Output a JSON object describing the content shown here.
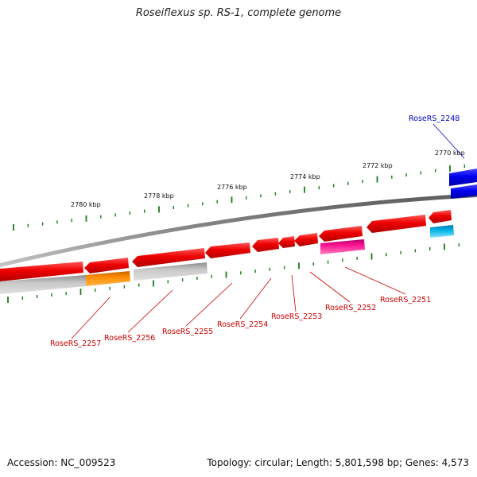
{
  "title": "Roseiflexus sp. RS-1, complete genome",
  "footer": {
    "accession": "Accession: NC_009523",
    "summary": "Topology: circular; Length: 5,801,598 bp; Genes: 4,573"
  },
  "colors": {
    "backbone": "#808080",
    "tick": "#1a7a1a",
    "gene_red": "#ee0000",
    "gene_blue": "#0000ee",
    "gene_gray": "#b4b4b4",
    "gene_orange": "#ff8c00",
    "gene_pink": "#ff1493",
    "gene_cyan": "#00b4e6",
    "label_red": "#cc0000",
    "label_blue": "#0000cc"
  },
  "axis": {
    "unit": "kbp",
    "tick_labels": [
      "2770 kbp",
      "2772 kbp",
      "2774 kbp",
      "2776 kbp",
      "2778 kbp",
      "2780 kbp"
    ]
  },
  "genes": [
    {
      "id": "RoseRS_2248",
      "strand": "+",
      "color": "blue"
    },
    {
      "id": "RoseRS_2251",
      "strand": "-",
      "color": "red"
    },
    {
      "id": "RoseRS_2252",
      "strand": "-",
      "color": "red"
    },
    {
      "id": "RoseRS_2253",
      "strand": "-",
      "color": "red"
    },
    {
      "id": "RoseRS_2254",
      "strand": "-",
      "color": "red"
    },
    {
      "id": "RoseRS_2255",
      "strand": "-",
      "color": "red"
    },
    {
      "id": "RoseRS_2256",
      "strand": "-",
      "color": "red"
    },
    {
      "id": "RoseRS_2257",
      "strand": "-",
      "color": "red"
    }
  ]
}
